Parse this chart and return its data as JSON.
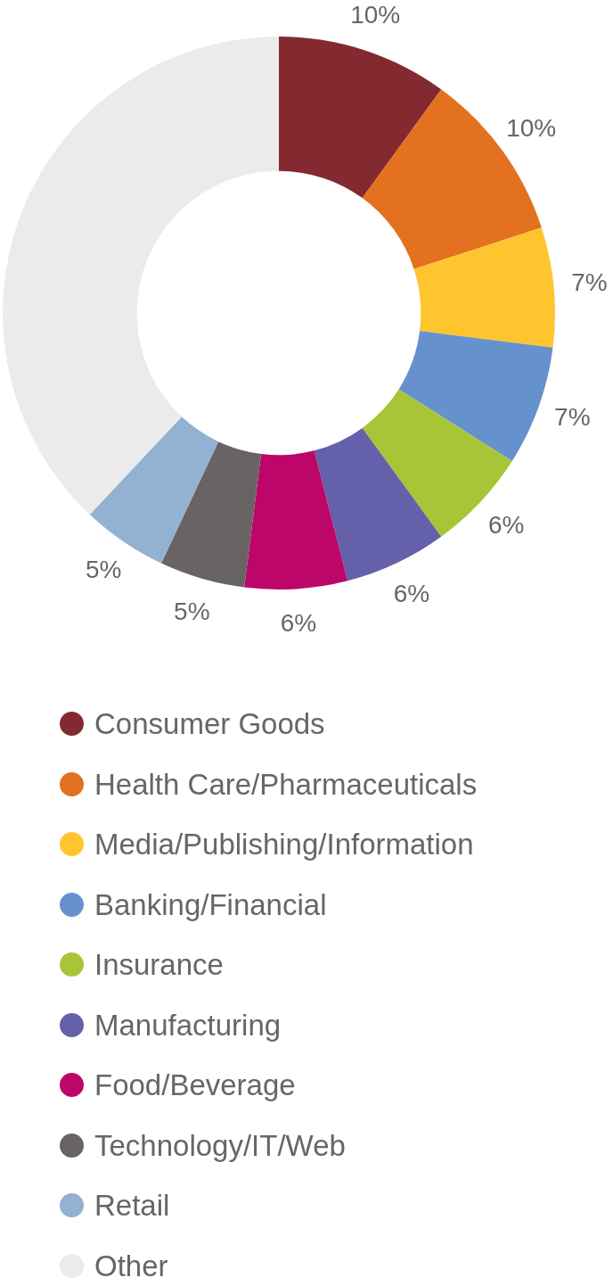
{
  "chart_data": {
    "type": "donut",
    "categories": [
      "Consumer Goods",
      "Health Care/Pharmaceuticals",
      "Media/Publishing/Information",
      "Banking/Financial",
      "Insurance",
      "Manufacturing",
      "Food/Beverage",
      "Technology/IT/Web",
      "Retail",
      "Other"
    ],
    "values": [
      10,
      10,
      7,
      7,
      6,
      6,
      6,
      5,
      5,
      38
    ],
    "colors": [
      "#832a30",
      "#e3711f",
      "#ffc52e",
      "#6592cd",
      "#a8c537",
      "#6460aa",
      "#bd0669",
      "#686464",
      "#93b1d0",
      "#ebebeb"
    ],
    "value_labels": [
      "10%",
      "10%",
      "7%",
      "7%",
      "6%",
      "6%",
      "6%",
      "5%",
      "5%",
      null
    ],
    "legend": "bottom"
  }
}
